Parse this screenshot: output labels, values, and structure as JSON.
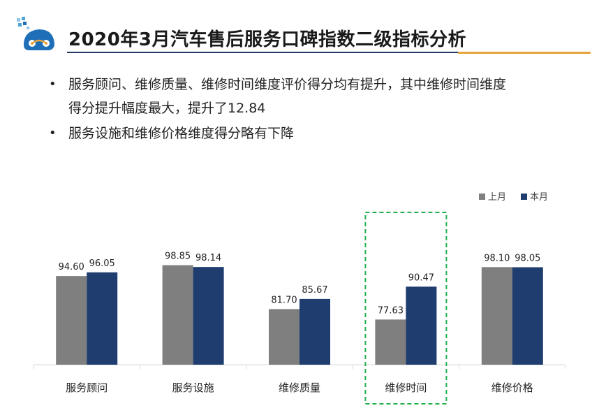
{
  "header": {
    "title": "2020年3月汽车售后服务口碑指数二级指标分析"
  },
  "bullets": [
    {
      "line1": "服务顾问、维修质量、维修时间维度评价得分均有提升，其中维修时间维度",
      "line2": "得分提升幅度最大，提升了12.84"
    },
    {
      "line1": "服务设施和维修价格维度得分略有下降",
      "line2": ""
    }
  ],
  "colors": {
    "last_month": "#7f7f7f",
    "this_month": "#1f3d6e",
    "highlight_border": "#22b04b",
    "title_rule": "#1f3a64",
    "title_accent": "#e8a33a"
  },
  "chart_data": {
    "type": "bar",
    "categories": [
      "服务顾问",
      "服务设施",
      "维修质量",
      "维修时间",
      "维修价格"
    ],
    "series": [
      {
        "name": "上月",
        "values": [
          94.6,
          98.85,
          81.7,
          77.63,
          98.1
        ]
      },
      {
        "name": "本月",
        "values": [
          96.05,
          98.14,
          85.67,
          90.47,
          98.05
        ]
      }
    ],
    "highlight_category": "维修时间",
    "legend_position": "top-right",
    "grid": false,
    "axis_lines": false,
    "data_labels": true
  }
}
